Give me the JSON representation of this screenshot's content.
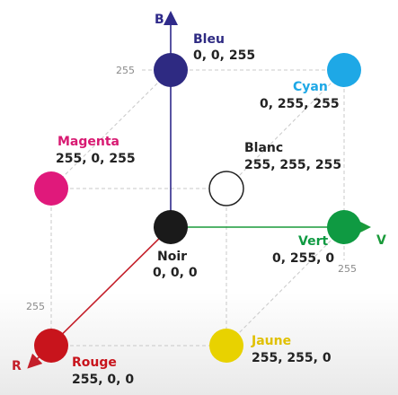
{
  "axes": {
    "b": {
      "label": "B",
      "color": "#2f2a8a"
    },
    "v": {
      "label": "V",
      "color": "#1a9a3a"
    },
    "r": {
      "label": "R",
      "color": "#c41f2a"
    }
  },
  "ticks": {
    "b_top": "255",
    "v_right": "255",
    "r_left": "255"
  },
  "nodes": {
    "bleu": {
      "name": "Bleu",
      "value": "0, 0, 255",
      "fill": "#2e2a82",
      "name_color": "#2e2a82"
    },
    "cyan": {
      "name": "Cyan",
      "value": "0, 255, 255",
      "fill": "#1ea8e6",
      "name_color": "#1ea8e6"
    },
    "magenta": {
      "name": "Magenta",
      "value": "255, 0, 255",
      "fill": "#e0197b",
      "name_color": "#d81a72"
    },
    "blanc": {
      "name": "Blanc",
      "value": "255, 255, 255",
      "fill": "#ffffff",
      "name_color": "#222222"
    },
    "noir": {
      "name": "Noir",
      "value": "0, 0, 0",
      "fill": "#1a1a1a",
      "name_color": "#222222"
    },
    "vert": {
      "name": "Vert",
      "value": "0, 255, 0",
      "fill": "#0f9a42",
      "name_color": "#0f9a42"
    },
    "rouge": {
      "name": "Rouge",
      "value": "255, 0, 0",
      "fill": "#c8141c",
      "name_color": "#c8141c"
    },
    "jaune": {
      "name": "Jaune",
      "value": "255, 255, 0",
      "fill": "#e8d200",
      "name_color": "#e0c000"
    }
  }
}
